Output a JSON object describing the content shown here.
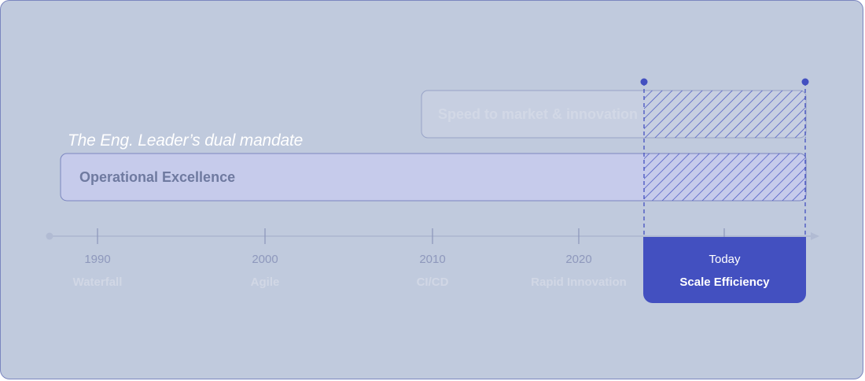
{
  "title": "The Eng. Leader’s dual mandate",
  "bands": {
    "operational": "Operational Excellence",
    "speed": "Speed to market & innovation"
  },
  "timeline": [
    {
      "year": "1990",
      "era": "Waterfall"
    },
    {
      "year": "2000",
      "era": "Agile"
    },
    {
      "year": "2010",
      "era": "CI/CD"
    },
    {
      "year": "2020",
      "era": "Rapid Innovation"
    }
  ],
  "today": {
    "label": "Today",
    "era": "Scale Efficiency"
  },
  "colors": {
    "background": "#c0cadd",
    "accent": "#4350c0",
    "band_fill": "#c6cbeb",
    "band_stroke": "#7b86bf"
  }
}
